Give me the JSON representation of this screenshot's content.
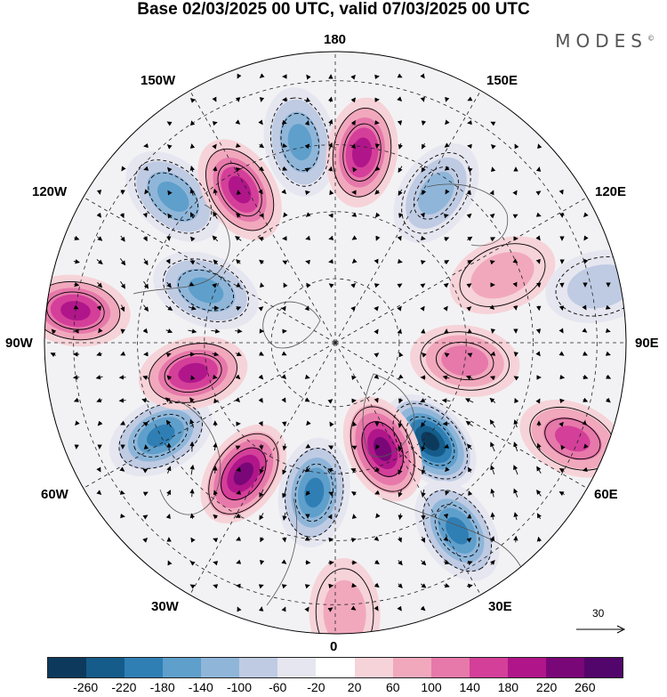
{
  "title": "Base 02/03/2025 00 UTC, valid 07/03/2025 00 UTC",
  "brand": "MODES",
  "brand_mark": "©",
  "longitude_labels": {
    "top": "180",
    "bottom": "0",
    "left": "90W",
    "right": "90E",
    "upper_left_1": "150W",
    "upper_left_2": "120W",
    "lower_left_1": "60W",
    "lower_left_2": "30W",
    "upper_right_1": "150E",
    "upper_right_2": "120E",
    "lower_right_1": "60E",
    "lower_right_2": "30E"
  },
  "reference_vector": {
    "label": "30"
  },
  "colorbar": {
    "labels": [
      "-260",
      "-220",
      "-180",
      "-140",
      "-100",
      "-60",
      "-20",
      "20",
      "60",
      "100",
      "140",
      "180",
      "220",
      "260"
    ],
    "colors": [
      "#0d3a5c",
      "#155c8a",
      "#2f7fb5",
      "#5f9fcb",
      "#8fb6d9",
      "#bfcbe3",
      "#e6e6f0",
      "#ffffff",
      "#f6d3d8",
      "#f1a8bd",
      "#e679aa",
      "#d43f99",
      "#b0168a",
      "#7a0777",
      "#52056b"
    ]
  },
  "anomalies": [
    {
      "name": "neg-sw-scandinavia",
      "lon": -8,
      "r": 0.52,
      "value": -200
    },
    {
      "name": "pos-western-europe",
      "lon": -35,
      "r": 0.55,
      "value": 240
    },
    {
      "name": "neg-east-atlantic",
      "lon": -62,
      "r": 0.68,
      "value": -180
    },
    {
      "name": "pos-north-atlantic",
      "lon": -78,
      "r": 0.5,
      "value": 190
    },
    {
      "name": "neg-baffin",
      "lon": -112,
      "r": 0.48,
      "value": -150
    },
    {
      "name": "pos-north-america",
      "lon": -97,
      "r": 0.9,
      "value": 180
    },
    {
      "name": "neg-alaska-west",
      "lon": -132,
      "r": 0.75,
      "value": -140
    },
    {
      "name": "pos-alaska",
      "lon": -148,
      "r": 0.62,
      "value": 180
    },
    {
      "name": "neg-bering",
      "lon": -170,
      "r": 0.7,
      "value": -160
    },
    {
      "name": "pos-kamchatka",
      "lon": 172,
      "r": 0.66,
      "value": 190
    },
    {
      "name": "neg-okhotsk",
      "lon": 146,
      "r": 0.62,
      "value": -120
    },
    {
      "name": "pos-east-siberia",
      "lon": 112,
      "r": 0.62,
      "value": 80
    },
    {
      "name": "neg-east-asia",
      "lon": 102,
      "r": 0.93,
      "value": -60
    },
    {
      "name": "pos-central-siberia",
      "lon": 82,
      "r": 0.45,
      "value": 110
    },
    {
      "name": "neg-ural",
      "lon": 44,
      "r": 0.47,
      "value": -270
    },
    {
      "name": "pos-scandinavia",
      "lon": 24,
      "r": 0.4,
      "value": 250
    },
    {
      "name": "pos-caspian",
      "lon": 68,
      "r": 0.88,
      "value": 160
    },
    {
      "name": "neg-mediterranean",
      "lon": 33,
      "r": 0.77,
      "value": -180
    },
    {
      "name": "pos-africa",
      "lon": 2,
      "r": 0.93,
      "value": 80
    }
  ]
}
